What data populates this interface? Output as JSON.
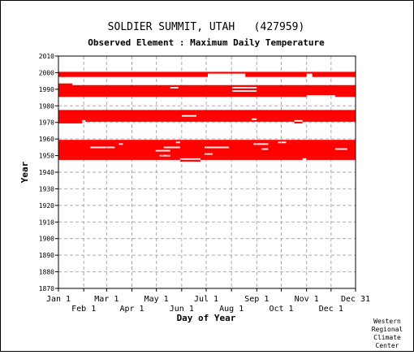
{
  "chart_data": {
    "type": "timeline",
    "title": "SOLDIER SUMMIT, UTAH   (427959)",
    "subtitle": "Observed Element : Maximum Daily Temperature",
    "xlabel": "Day of Year",
    "ylabel": "Year",
    "ylim": [
      1870,
      2010
    ],
    "xlim": [
      1,
      365
    ],
    "x_ticks_top": [
      {
        "label": "Jan 1",
        "day": 1
      },
      {
        "label": "Mar 1",
        "day": 60
      },
      {
        "label": "May 1",
        "day": 121
      },
      {
        "label": "Jul 1",
        "day": 182
      },
      {
        "label": "Sep 1",
        "day": 244
      },
      {
        "label": "Nov 1",
        "day": 305
      },
      {
        "label": "Dec 31",
        "day": 365
      }
    ],
    "x_ticks_bottom": [
      {
        "label": "Feb 1",
        "day": 32
      },
      {
        "label": "Apr 1",
        "day": 91
      },
      {
        "label": "Jun 1",
        "day": 152
      },
      {
        "label": "Aug 1",
        "day": 213
      },
      {
        "label": "Oct 1",
        "day": 274
      },
      {
        "label": "Dec 1",
        "day": 335
      }
    ],
    "y_ticks": [
      "2010",
      "2000",
      "1990",
      "1980",
      "1970",
      "1960",
      "1950",
      "1940",
      "1930",
      "1920",
      "1910",
      "1900",
      "1890",
      "1880",
      "1870"
    ],
    "grid": true,
    "bar_color": "#ff0000",
    "series": [
      {
        "year": 2000,
        "segments": [
          [
            1,
            365
          ]
        ]
      },
      {
        "year": 1999,
        "segments": [
          [
            1,
            184
          ],
          [
            230,
            305
          ],
          [
            312,
            365
          ]
        ]
      },
      {
        "year": 1998,
        "segments": [
          [
            1,
            184
          ],
          [
            230,
            305
          ],
          [
            312,
            365
          ]
        ]
      },
      {
        "year": 1993,
        "segments": [
          [
            1,
            18
          ]
        ]
      },
      {
        "year": 1992,
        "segments": [
          [
            1,
            365
          ]
        ]
      },
      {
        "year": 1991,
        "segments": [
          [
            1,
            138
          ],
          [
            148,
            214
          ],
          [
            244,
            365
          ]
        ]
      },
      {
        "year": 1990,
        "segments": [
          [
            1,
            365
          ]
        ]
      },
      {
        "year": 1989,
        "segments": [
          [
            1,
            214
          ],
          [
            244,
            365
          ]
        ]
      },
      {
        "year": 1988,
        "segments": [
          [
            1,
            365
          ]
        ]
      },
      {
        "year": 1987,
        "segments": [
          [
            1,
            365
          ]
        ]
      },
      {
        "year": 1986,
        "segments": [
          [
            1,
            305
          ],
          [
            340,
            365
          ]
        ]
      },
      {
        "year": 1977,
        "segments": [
          [
            1,
            365
          ]
        ]
      },
      {
        "year": 1976,
        "segments": [
          [
            1,
            365
          ]
        ]
      },
      {
        "year": 1975,
        "segments": [
          [
            1,
            365
          ]
        ]
      },
      {
        "year": 1974,
        "segments": [
          [
            1,
            152
          ],
          [
            170,
            365
          ]
        ]
      },
      {
        "year": 1973,
        "segments": [
          [
            1,
            365
          ]
        ]
      },
      {
        "year": 1972,
        "segments": [
          [
            1,
            238
          ],
          [
            244,
            365
          ]
        ]
      },
      {
        "year": 1971,
        "segments": [
          [
            1,
            30
          ],
          [
            34,
            290
          ],
          [
            300,
            365
          ]
        ]
      },
      {
        "year": 1970,
        "segments": [
          [
            1,
            30
          ],
          [
            290,
            300
          ]
        ]
      },
      {
        "year": 1959,
        "segments": [
          [
            1,
            365
          ]
        ]
      },
      {
        "year": 1958,
        "segments": [
          [
            1,
            145
          ],
          [
            150,
            270
          ],
          [
            280,
            365
          ]
        ]
      },
      {
        "year": 1957,
        "segments": [
          [
            1,
            75
          ],
          [
            80,
            240
          ],
          [
            258,
            365
          ]
        ]
      },
      {
        "year": 1956,
        "segments": [
          [
            1,
            365
          ]
        ]
      },
      {
        "year": 1955,
        "segments": [
          [
            1,
            40
          ],
          [
            70,
            130
          ],
          [
            150,
            180
          ],
          [
            210,
            365
          ]
        ]
      },
      {
        "year": 1954,
        "segments": [
          [
            1,
            250
          ],
          [
            258,
            340
          ],
          [
            355,
            365
          ]
        ]
      },
      {
        "year": 1953,
        "segments": [
          [
            1,
            120
          ],
          [
            138,
            365
          ]
        ]
      },
      {
        "year": 1952,
        "segments": [
          [
            1,
            365
          ]
        ]
      },
      {
        "year": 1951,
        "segments": [
          [
            1,
            180
          ],
          [
            190,
            365
          ]
        ]
      },
      {
        "year": 1950,
        "segments": [
          [
            1,
            125
          ],
          [
            138,
            365
          ]
        ]
      },
      {
        "year": 1949,
        "segments": [
          [
            1,
            365
          ]
        ]
      },
      {
        "year": 1948,
        "segments": [
          [
            1,
            150
          ],
          [
            175,
            300
          ],
          [
            305,
            365
          ]
        ]
      },
      {
        "year": 1947,
        "segments": [
          [
            150,
            175
          ]
        ]
      }
    ]
  },
  "credit": {
    "line1": "Western",
    "line2": "Regional",
    "line3": "Climate",
    "line4": "Center"
  }
}
